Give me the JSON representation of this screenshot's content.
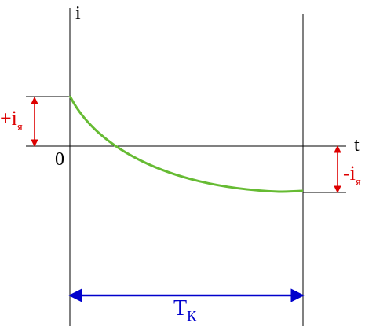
{
  "labels": {
    "y_axis": "i",
    "x_axis": "t",
    "origin": "0",
    "plus_i_base": "+i",
    "plus_i_sub": "я",
    "minus_i_base": "-i",
    "minus_i_sub": "я",
    "period_base": "T",
    "period_sub": "К"
  },
  "colors": {
    "axis": "#000000",
    "curve": "#66bb33",
    "arrow_red": "#dd0000",
    "arrow_blue": "#0000cc"
  }
}
